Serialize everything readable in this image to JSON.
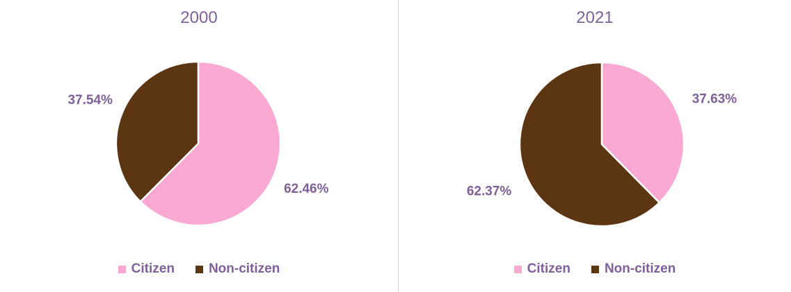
{
  "chart_data": [
    {
      "type": "pie",
      "title": "2000",
      "categories": [
        "Citizen",
        "Non-citizen"
      ],
      "values": [
        62.46,
        37.54
      ],
      "labels": [
        "62.46%",
        "37.54%"
      ],
      "colors": [
        "#f9a9d2",
        "#5c3512"
      ],
      "legend": "bottom"
    },
    {
      "type": "pie",
      "title": "2021",
      "categories": [
        "Citizen",
        "Non-citizen"
      ],
      "values": [
        37.63,
        62.37
      ],
      "labels": [
        "37.63%",
        "62.37%"
      ],
      "colors": [
        "#f9a9d2",
        "#5c3512"
      ],
      "legend": "bottom"
    }
  ]
}
